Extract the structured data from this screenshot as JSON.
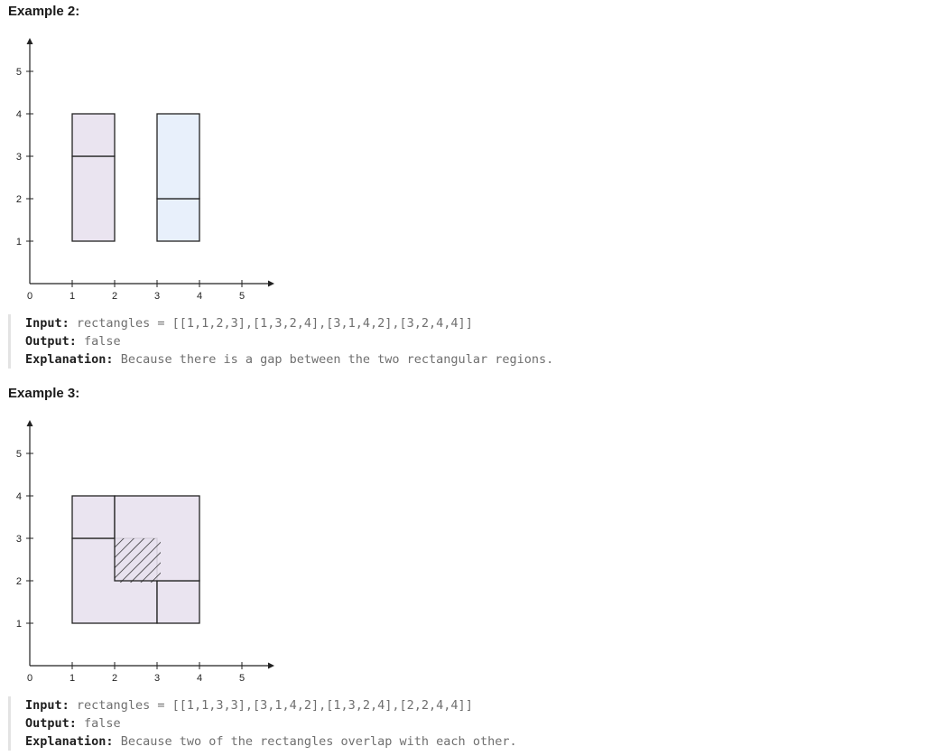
{
  "examples": [
    {
      "title": "Example 2:",
      "input_label": "Input:",
      "input_value": "rectangles = [[1,1,2,3],[1,3,2,4],[3,1,4,2],[3,2,4,4]]",
      "output_label": "Output:",
      "output_value": "false",
      "explanation_label": "Explanation:",
      "explanation_value": "Because there is a gap between the two rectangular regions."
    },
    {
      "title": "Example 3:",
      "input_label": "Input:",
      "input_value": "rectangles = [[1,1,3,3],[3,1,4,2],[1,3,2,4],[2,2,4,4]]",
      "output_label": "Output:",
      "output_value": "false",
      "explanation_label": "Explanation:",
      "explanation_value": "Because two of the rectangles overlap with each other."
    }
  ],
  "chart_data": [
    {
      "type": "diagram",
      "x_ticks": [
        "0",
        "1",
        "2",
        "3",
        "4",
        "5"
      ],
      "y_ticks": [
        "1",
        "2",
        "3",
        "4",
        "5"
      ],
      "rectangles": [
        {
          "x1": 1,
          "y1": 1,
          "x2": 2,
          "y2": 3,
          "fill": "#e8e1ee"
        },
        {
          "x1": 1,
          "y1": 3,
          "x2": 2,
          "y2": 4,
          "fill": "#e8e1ee"
        },
        {
          "x1": 3,
          "y1": 1,
          "x2": 4,
          "y2": 2,
          "fill": "#e5eefb"
        },
        {
          "x1": 3,
          "y1": 2,
          "x2": 4,
          "y2": 4,
          "fill": "#e5eefb"
        }
      ],
      "overlap": null
    },
    {
      "type": "diagram",
      "x_ticks": [
        "0",
        "1",
        "2",
        "3",
        "4",
        "5"
      ],
      "y_ticks": [
        "1",
        "2",
        "3",
        "4",
        "5"
      ],
      "rectangles": [
        {
          "x1": 1,
          "y1": 1,
          "x2": 3,
          "y2": 3,
          "fill": "#e8e1ee"
        },
        {
          "x1": 3,
          "y1": 1,
          "x2": 4,
          "y2": 2,
          "fill": "#e8e1ee"
        },
        {
          "x1": 1,
          "y1": 3,
          "x2": 2,
          "y2": 4,
          "fill": "#e8e1ee"
        },
        {
          "x1": 2,
          "y1": 2,
          "x2": 4,
          "y2": 4,
          "fill": "#e8e1ee"
        }
      ],
      "overlap": {
        "x1": 2,
        "y1": 2,
        "x2": 3,
        "y2": 3
      }
    }
  ]
}
